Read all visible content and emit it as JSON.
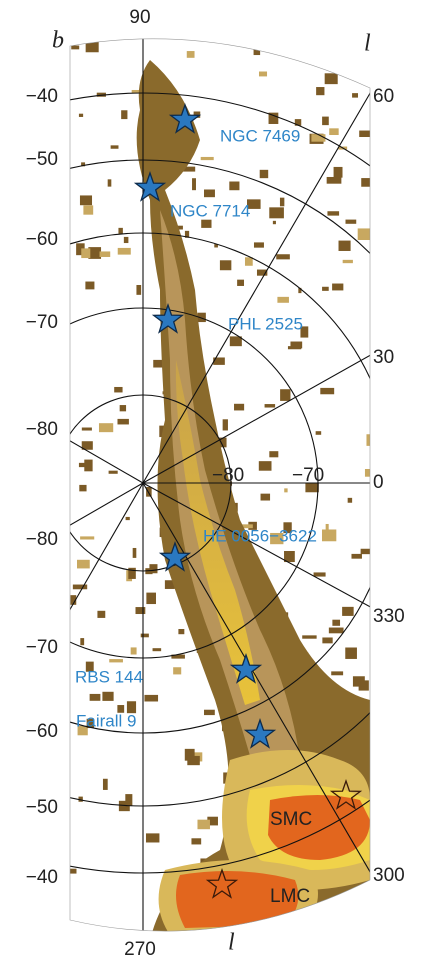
{
  "axes": {
    "b_symbol": "b",
    "l_symbol_top": "l",
    "l_symbol_bottom": "l",
    "top_label": "90",
    "bottom_label": "270",
    "b_labels": [
      "−40",
      "−50",
      "−60",
      "−70",
      "−80",
      "−80",
      "−70",
      "−60",
      "−50",
      "−40"
    ],
    "l_labels": [
      "60",
      "30",
      "0",
      "330",
      "300"
    ],
    "inner_labels": [
      "−80",
      "−70"
    ]
  },
  "sources": [
    "NGC 7469",
    "NGC 7714",
    "PHL 2525",
    "HE 0056−3622",
    "RBS 144",
    "Fairall 9"
  ],
  "clouds": [
    "SMC",
    "LMC"
  ]
}
